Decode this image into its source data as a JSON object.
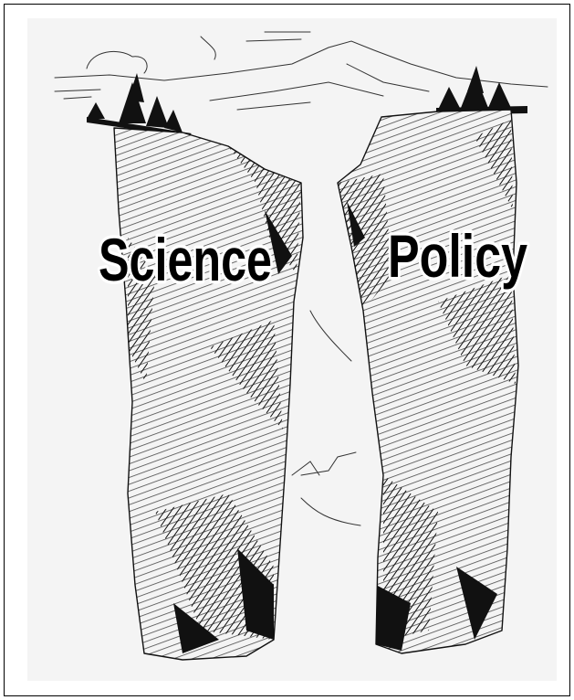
{
  "labels": {
    "left": "Science",
    "right": "Policy"
  }
}
